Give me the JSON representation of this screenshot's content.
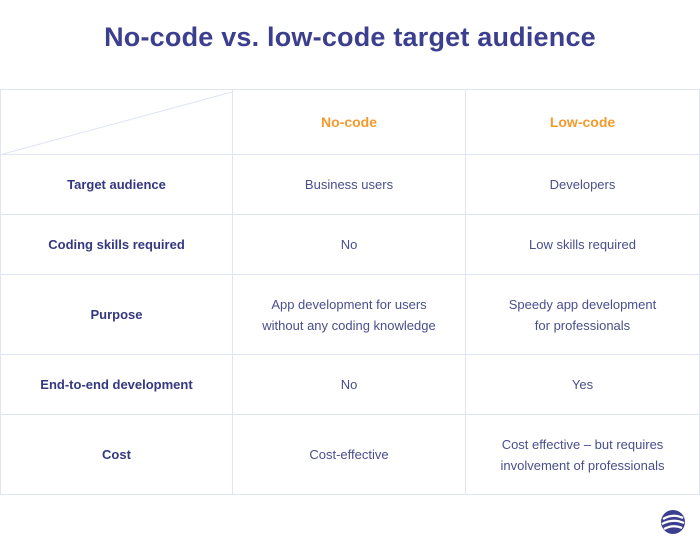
{
  "title": "No-code vs. low-code target audience",
  "table": {
    "header": [
      "No-code",
      "Low-code"
    ],
    "rows": [
      [
        "Target audience",
        "Business users",
        "Developers"
      ],
      [
        "Coding skills required",
        "No",
        "Low skills required"
      ],
      [
        "Purpose",
        [
          "App development for users",
          "without any coding knowledge"
        ],
        [
          "Speedy app development",
          "for professionals"
        ]
      ],
      [
        "End-to-end development",
        "No",
        "Yes"
      ],
      [
        "Cost",
        "Cost-effective",
        [
          "Cost effective – but requires",
          "involvement of professionals"
        ]
      ]
    ]
  }
}
